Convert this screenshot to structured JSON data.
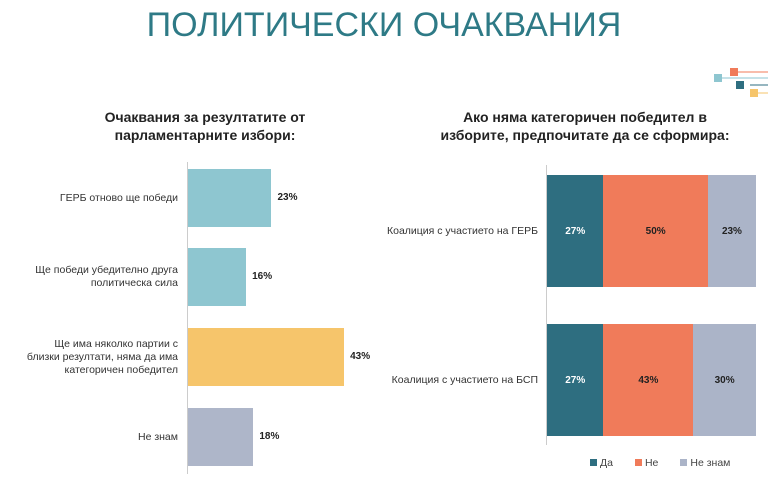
{
  "title": "ПОЛИТИЧЕСКИ ОЧАКВАНИЯ",
  "chart_data": [
    {
      "type": "bar",
      "orientation": "horizontal",
      "title": "Очаквания за резултатите от парламентарните избори:",
      "categories": [
        "ГЕРБ отново ще победи",
        "Ще победи убедително друга политическа сила",
        "Ще има няколко партии с близки резултати,  няма да има категоричен победител",
        "Не знам"
      ],
      "values": [
        23,
        16,
        43,
        18
      ],
      "labels": [
        "23%",
        "16%",
        "43%",
        "18%"
      ],
      "colors": [
        "#8ec6d0",
        "#8ec6d0",
        "#f6c56b",
        "#aeb6c9"
      ]
    },
    {
      "type": "bar",
      "orientation": "horizontal",
      "stacked": true,
      "title": "Ако няма категоричен победител в изборите, предпочитате да се сформира:",
      "categories": [
        "Коалиция с участието  на ГЕРБ",
        "Коалиция с участието  на БСП"
      ],
      "series": [
        {
          "name": "Да",
          "values": [
            27,
            27
          ],
          "labels": [
            "27%",
            "27%"
          ],
          "color": "#2e6e80"
        },
        {
          "name": "Не",
          "values": [
            50,
            43
          ],
          "labels": [
            "50%",
            "43%"
          ],
          "color": "#f07b5a"
        },
        {
          "name": "Не знам",
          "values": [
            23,
            30
          ],
          "labels": [
            "23%",
            "30%"
          ],
          "color": "#abb4c8"
        }
      ],
      "legend": "bottom"
    }
  ]
}
